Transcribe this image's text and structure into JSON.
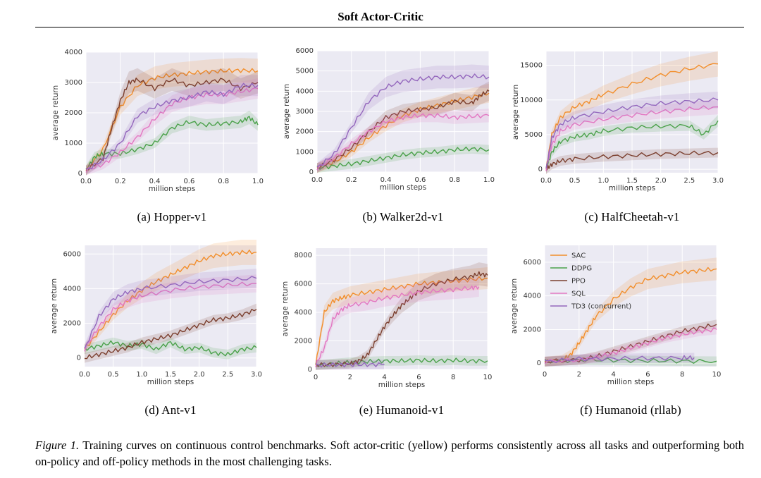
{
  "header": {
    "running_head": "Soft Actor-Critic"
  },
  "legend": {
    "placement": "top-left",
    "entries": [
      {
        "name": "SAC",
        "color": "#f28e2b"
      },
      {
        "name": "DDPG",
        "color": "#4aa14a"
      },
      {
        "name": "PPO",
        "color": "#7b3f2e"
      },
      {
        "name": "SQL",
        "color": "#e377c2"
      },
      {
        "name": "TD3 (concurrent)",
        "color": "#9467bd"
      }
    ]
  },
  "figure": {
    "caption_label": "Figure 1.",
    "caption_text": " Training curves on continuous control benchmarks.  Soft actor-critic (yellow) performs consistently across all tasks and outperforming both on-policy and off-policy methods in the most challenging tasks."
  },
  "chart_data": [
    {
      "type": "line",
      "subcaption": "(a)  Hopper-v1",
      "xlabel": "million steps",
      "ylabel": "average return",
      "xlim": [
        0,
        1.0
      ],
      "ylim": [
        0,
        4000
      ],
      "xticks": [
        "0.0",
        "0.2",
        "0.4",
        "0.6",
        "0.8",
        "1.0"
      ],
      "xtick_values": [
        0,
        0.2,
        0.4,
        0.6,
        0.8,
        1.0
      ],
      "yticks": [
        "0",
        "1000",
        "2000",
        "3000",
        "4000"
      ],
      "ytick_values": [
        0,
        1000,
        2000,
        3000,
        4000
      ],
      "series": [
        {
          "key": "SAC",
          "x": [
            0,
            0.1,
            0.2,
            0.3,
            0.4,
            0.5,
            0.6,
            0.7,
            0.8,
            0.9,
            1.0
          ],
          "y": [
            100,
            800,
            2200,
            2900,
            3150,
            3250,
            3300,
            3350,
            3380,
            3400,
            3380
          ]
        },
        {
          "key": "DDPG",
          "x": [
            0,
            0.05,
            0.1,
            0.2,
            0.3,
            0.4,
            0.5,
            0.6,
            0.7,
            0.8,
            0.9,
            0.95,
            1.0
          ],
          "y": [
            100,
            550,
            650,
            650,
            800,
            1000,
            1500,
            1700,
            1600,
            1650,
            1700,
            1850,
            1600
          ]
        },
        {
          "key": "PPO",
          "x": [
            0,
            0.1,
            0.15,
            0.2,
            0.25,
            0.3,
            0.4,
            0.5,
            0.6,
            0.7,
            0.8,
            0.9,
            1.0
          ],
          "y": [
            100,
            500,
            1500,
            2400,
            3000,
            3100,
            2800,
            3100,
            2900,
            3000,
            3100,
            2800,
            3000
          ]
        },
        {
          "key": "SQL",
          "x": [
            0,
            0.1,
            0.2,
            0.3,
            0.4,
            0.5,
            0.6,
            0.7,
            0.8,
            0.9,
            1.0
          ],
          "y": [
            100,
            300,
            700,
            1200,
            1800,
            2300,
            2500,
            2600,
            2600,
            2700,
            2800
          ]
        },
        {
          "key": "TD3 (concurrent)",
          "x": [
            0,
            0.1,
            0.2,
            0.3,
            0.4,
            0.5,
            0.6,
            0.7,
            0.8,
            0.9,
            1.0
          ],
          "y": [
            100,
            450,
            1000,
            1900,
            2200,
            2400,
            2500,
            2700,
            2600,
            2900,
            2900
          ]
        }
      ]
    },
    {
      "type": "line",
      "subcaption": "(b)  Walker2d-v1",
      "xlabel": "million steps",
      "ylabel": "average return",
      "xlim": [
        0,
        1.0
      ],
      "ylim": [
        0,
        6000
      ],
      "xticks": [
        "0.0",
        "0.2",
        "0.4",
        "0.6",
        "0.8",
        "1.0"
      ],
      "xtick_values": [
        0,
        0.2,
        0.4,
        0.6,
        0.8,
        1.0
      ],
      "yticks": [
        "0",
        "1000",
        "2000",
        "3000",
        "4000",
        "5000",
        "6000"
      ],
      "ytick_values": [
        0,
        1000,
        2000,
        3000,
        4000,
        5000,
        6000
      ],
      "series": [
        {
          "key": "SAC",
          "x": [
            0,
            0.1,
            0.2,
            0.3,
            0.4,
            0.5,
            0.6,
            0.7,
            0.8,
            0.9,
            1.0
          ],
          "y": [
            200,
            500,
            1000,
            1700,
            2300,
            2800,
            3100,
            3300,
            3500,
            3700,
            3900
          ]
        },
        {
          "key": "DDPG",
          "x": [
            0,
            0.1,
            0.2,
            0.3,
            0.4,
            0.5,
            0.6,
            0.7,
            0.8,
            0.9,
            1.0
          ],
          "y": [
            200,
            300,
            400,
            550,
            700,
            850,
            950,
            1000,
            1100,
            1150,
            1100
          ]
        },
        {
          "key": "PPO",
          "x": [
            0,
            0.1,
            0.2,
            0.3,
            0.4,
            0.5,
            0.6,
            0.7,
            0.8,
            0.9,
            0.95,
            1.0
          ],
          "y": [
            200,
            600,
            1200,
            2000,
            2700,
            3000,
            3100,
            3200,
            3500,
            3400,
            3800,
            4000
          ]
        },
        {
          "key": "SQL",
          "x": [
            0,
            0.1,
            0.2,
            0.3,
            0.4,
            0.5,
            0.6,
            0.7,
            0.8,
            0.9,
            1.0
          ],
          "y": [
            200,
            700,
            1400,
            2000,
            2500,
            2700,
            2800,
            2800,
            2700,
            2750,
            2800
          ]
        },
        {
          "key": "TD3 (concurrent)",
          "x": [
            0,
            0.1,
            0.2,
            0.3,
            0.4,
            0.5,
            0.6,
            0.7,
            0.8,
            0.9,
            1.0
          ],
          "y": [
            200,
            900,
            2200,
            3500,
            4200,
            4500,
            4600,
            4700,
            4700,
            4750,
            4700
          ]
        }
      ]
    },
    {
      "type": "line",
      "subcaption": "(c)  HalfCheetah-v1",
      "xlabel": "million steps",
      "ylabel": "average return",
      "xlim": [
        0,
        3.0
      ],
      "ylim": [
        -500,
        17000
      ],
      "xticks": [
        "0.0",
        "0.5",
        "1.0",
        "1.5",
        "2.0",
        "2.5",
        "3.0"
      ],
      "xtick_values": [
        0,
        0.5,
        1.0,
        1.5,
        2.0,
        2.5,
        3.0
      ],
      "yticks": [
        "0",
        "5000",
        "10000",
        "15000"
      ],
      "ytick_values": [
        0,
        5000,
        10000,
        15000
      ],
      "series": [
        {
          "key": "SAC",
          "x": [
            0,
            0.1,
            0.25,
            0.5,
            0.75,
            1.0,
            1.5,
            2.0,
            2.5,
            3.0
          ],
          "y": [
            0,
            5000,
            7500,
            9000,
            9800,
            10800,
            12300,
            13600,
            14500,
            15200
          ]
        },
        {
          "key": "DDPG",
          "x": [
            0,
            0.1,
            0.25,
            0.5,
            0.75,
            1.0,
            1.5,
            2.0,
            2.5,
            2.75,
            3.0
          ],
          "y": [
            0,
            2500,
            4000,
            4700,
            5000,
            5500,
            6000,
            6200,
            6300,
            5000,
            7000
          ]
        },
        {
          "key": "PPO",
          "x": [
            0,
            0.1,
            0.25,
            0.5,
            1.0,
            1.5,
            2.0,
            2.5,
            3.0
          ],
          "y": [
            0,
            700,
            1200,
            1500,
            1800,
            2000,
            2200,
            2300,
            2400
          ]
        },
        {
          "key": "SQL",
          "x": [
            0,
            0.1,
            0.25,
            0.5,
            1.0,
            1.5,
            2.0,
            2.5,
            3.0
          ],
          "y": [
            0,
            3500,
            5500,
            6500,
            7200,
            7800,
            8300,
            8700,
            9000
          ]
        },
        {
          "key": "TD3 (concurrent)",
          "x": [
            0,
            0.1,
            0.25,
            0.5,
            1.0,
            1.5,
            2.0,
            2.5,
            3.0
          ],
          "y": [
            0,
            4500,
            6500,
            7500,
            8300,
            9000,
            9500,
            9800,
            10000
          ]
        }
      ]
    },
    {
      "type": "line",
      "subcaption": "(d)  Ant-v1",
      "xlabel": "million steps",
      "ylabel": "average return",
      "xlim": [
        0,
        3.0
      ],
      "ylim": [
        -500,
        6500
      ],
      "xticks": [
        "0.0",
        "0.5",
        "1.0",
        "1.5",
        "2.0",
        "2.5",
        "3.0"
      ],
      "xtick_values": [
        0,
        0.5,
        1.0,
        1.5,
        2.0,
        2.5,
        3.0
      ],
      "yticks": [
        "0",
        "2000",
        "4000",
        "6000"
      ],
      "ytick_values": [
        0,
        2000,
        4000,
        6000
      ],
      "series": [
        {
          "key": "SAC",
          "x": [
            0,
            0.25,
            0.5,
            0.75,
            1.0,
            1.25,
            1.5,
            1.75,
            2.0,
            2.25,
            2.5,
            2.75,
            3.0
          ],
          "y": [
            500,
            1500,
            2500,
            3300,
            3900,
            4400,
            4800,
            5200,
            5600,
            5900,
            6000,
            6100,
            6100
          ]
        },
        {
          "key": "DDPG",
          "x": [
            0,
            0.25,
            0.5,
            0.75,
            1.0,
            1.25,
            1.5,
            1.75,
            2.0,
            2.25,
            2.5,
            2.75,
            3.0
          ],
          "y": [
            500,
            700,
            900,
            700,
            800,
            500,
            900,
            500,
            600,
            300,
            200,
            500,
            600
          ]
        },
        {
          "key": "PPO",
          "x": [
            0,
            0.25,
            0.5,
            0.75,
            1.0,
            1.25,
            1.5,
            1.75,
            2.0,
            2.25,
            2.5,
            2.75,
            3.0
          ],
          "y": [
            0,
            200,
            400,
            600,
            900,
            1100,
            1300,
            1600,
            1900,
            2200,
            2300,
            2500,
            2800
          ]
        },
        {
          "key": "SQL",
          "x": [
            0,
            0.25,
            0.5,
            0.75,
            1.0,
            1.5,
            2.0,
            2.5,
            3.0
          ],
          "y": [
            500,
            1800,
            2800,
            3300,
            3600,
            3900,
            4100,
            4200,
            4300
          ]
        },
        {
          "key": "TD3 (concurrent)",
          "x": [
            0,
            0.25,
            0.5,
            0.75,
            1.0,
            1.5,
            2.0,
            2.5,
            3.0
          ],
          "y": [
            500,
            2400,
            3400,
            3800,
            4000,
            4200,
            4400,
            4500,
            4600
          ]
        }
      ]
    },
    {
      "type": "line",
      "subcaption": "(e)  Humanoid-v1",
      "xlabel": "million steps",
      "ylabel": "average return",
      "xlim": [
        0,
        10
      ],
      "ylim": [
        0,
        8500
      ],
      "xticks": [
        "0",
        "2",
        "4",
        "6",
        "8",
        "10"
      ],
      "xtick_values": [
        0,
        2,
        4,
        6,
        8,
        10
      ],
      "yticks": [
        "0",
        "2000",
        "4000",
        "6000",
        "8000"
      ],
      "ytick_values": [
        0,
        2000,
        4000,
        6000,
        8000
      ],
      "series": [
        {
          "key": "SAC",
          "x": [
            0,
            0.5,
            1,
            1.5,
            2,
            3,
            4,
            5,
            6,
            7,
            8,
            9,
            10
          ],
          "y": [
            300,
            4000,
            4800,
            5000,
            5200,
            5400,
            5600,
            5800,
            6000,
            6100,
            6200,
            6300,
            6400
          ]
        },
        {
          "key": "DDPG",
          "x": [
            0,
            1,
            2,
            3,
            4,
            5,
            6,
            7,
            8,
            9,
            10
          ],
          "y": [
            300,
            400,
            500,
            550,
            600,
            600,
            650,
            600,
            650,
            600,
            600
          ]
        },
        {
          "key": "PPO",
          "x": [
            0,
            1,
            2,
            2.5,
            3,
            3.5,
            4,
            4.5,
            5,
            5.5,
            6,
            7,
            8,
            9,
            9.5,
            10
          ],
          "y": [
            300,
            350,
            400,
            600,
            1000,
            2000,
            3000,
            3800,
            4500,
            5000,
            5500,
            6000,
            6300,
            6500,
            6700,
            6600
          ]
        },
        {
          "key": "SQL",
          "x": [
            0,
            0.5,
            1,
            1.5,
            2,
            3,
            4,
            5,
            6,
            7,
            8,
            9,
            9.5
          ],
          "y": [
            300,
            1500,
            3500,
            4200,
            4500,
            4700,
            5000,
            5200,
            5400,
            5500,
            5600,
            5700,
            5800
          ]
        },
        {
          "key": "TD3 (concurrent)",
          "x": [
            0,
            1,
            2,
            3,
            4
          ],
          "y": [
            300,
            320,
            330,
            340,
            350
          ]
        }
      ]
    },
    {
      "type": "line",
      "subcaption": "(f)  Humanoid (rllab)",
      "xlabel": "million steps",
      "ylabel": "average return",
      "xlim": [
        0,
        10
      ],
      "ylim": [
        -200,
        7000
      ],
      "xticks": [
        "0",
        "2",
        "4",
        "6",
        "8",
        "10"
      ],
      "xtick_values": [
        0,
        2,
        4,
        6,
        8,
        10
      ],
      "yticks": [
        "0",
        "2000",
        "4000",
        "6000"
      ],
      "ytick_values": [
        0,
        2000,
        4000,
        6000
      ],
      "series": [
        {
          "key": "SAC",
          "x": [
            0,
            1,
            1.5,
            2,
            2.5,
            3,
            4,
            5,
            6,
            7,
            8,
            9,
            10
          ],
          "y": [
            100,
            200,
            500,
            1200,
            2000,
            2800,
            3800,
            4500,
            5000,
            5200,
            5400,
            5500,
            5600
          ]
        },
        {
          "key": "DDPG",
          "x": [
            0,
            2,
            4,
            6,
            8,
            10
          ],
          "y": [
            100,
            200,
            180,
            150,
            130,
            120
          ]
        },
        {
          "key": "PPO",
          "x": [
            0,
            2,
            3,
            4,
            5,
            6,
            7,
            8,
            9,
            10
          ],
          "y": [
            100,
            200,
            400,
            700,
            1000,
            1300,
            1600,
            1900,
            2100,
            2300
          ]
        },
        {
          "key": "SQL",
          "x": [
            0,
            2,
            3,
            4,
            5,
            6,
            7,
            8,
            9,
            10
          ],
          "y": [
            100,
            200,
            350,
            600,
            900,
            1200,
            1500,
            1700,
            1900,
            2000
          ]
        },
        {
          "key": "TD3 (concurrent)",
          "x": [
            0,
            2,
            4,
            6,
            8,
            8.7
          ],
          "y": [
            100,
            250,
            280,
            300,
            320,
            330
          ]
        }
      ]
    }
  ]
}
